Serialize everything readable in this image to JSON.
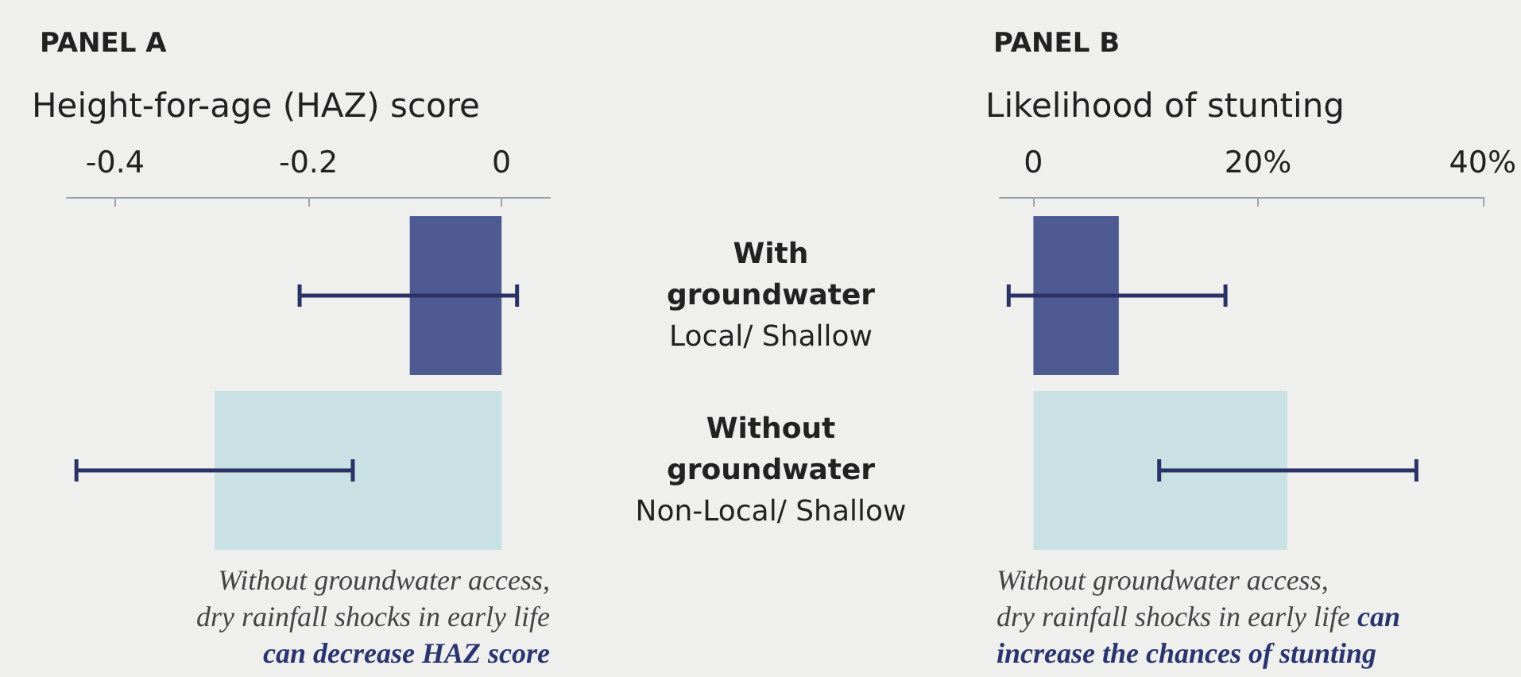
{
  "chart_data": [
    {
      "type": "bar",
      "title": "PANEL A",
      "xlabel": "Height-for-age (HAZ) score",
      "orientation": "horizontal",
      "categories": [
        "With\ngroundwater\nLocal/ Shallow",
        "Without\ngroundwater\nNon-Local/ Shallow"
      ],
      "colors": [
        "#4f5a92",
        "#c9e0e4"
      ],
      "values": [
        -0.095,
        -0.297
      ],
      "errors": [
        [
          -0.209,
          0.016
        ],
        [
          -0.44,
          -0.154
        ]
      ],
      "xlim": [
        -0.45,
        0.05
      ],
      "xticks": [
        -0.4,
        -0.2,
        0
      ],
      "annotations": [
        "Without groundwater access,\ndry rainfall shocks in early life\n",
        "can decrease HAZ score"
      ]
    },
    {
      "type": "bar",
      "title": "PANEL B",
      "xlabel": "Likelihood of stunting",
      "orientation": "horizontal",
      "categories": [
        null,
        null
      ],
      "colors": [
        "#4f5a92",
        "#c9e0e4"
      ],
      "values": [
        7.6,
        22.6
      ],
      "errors": [
        [
          -2.2,
          17.1
        ],
        [
          11.2,
          34.1
        ]
      ],
      "xlim": [
        -3,
        40
      ],
      "xticks": [
        0,
        {
          "value": 20,
          "label": "20%"
        },
        {
          "value": 40,
          "label": "40%"
        }
      ],
      "tick_labels": "x",
      "annotations": [
        "Without groundwater access,\ndry rainfall shocks in early life ",
        "can\nincrease the chances of stunting"
      ]
    }
  ]
}
